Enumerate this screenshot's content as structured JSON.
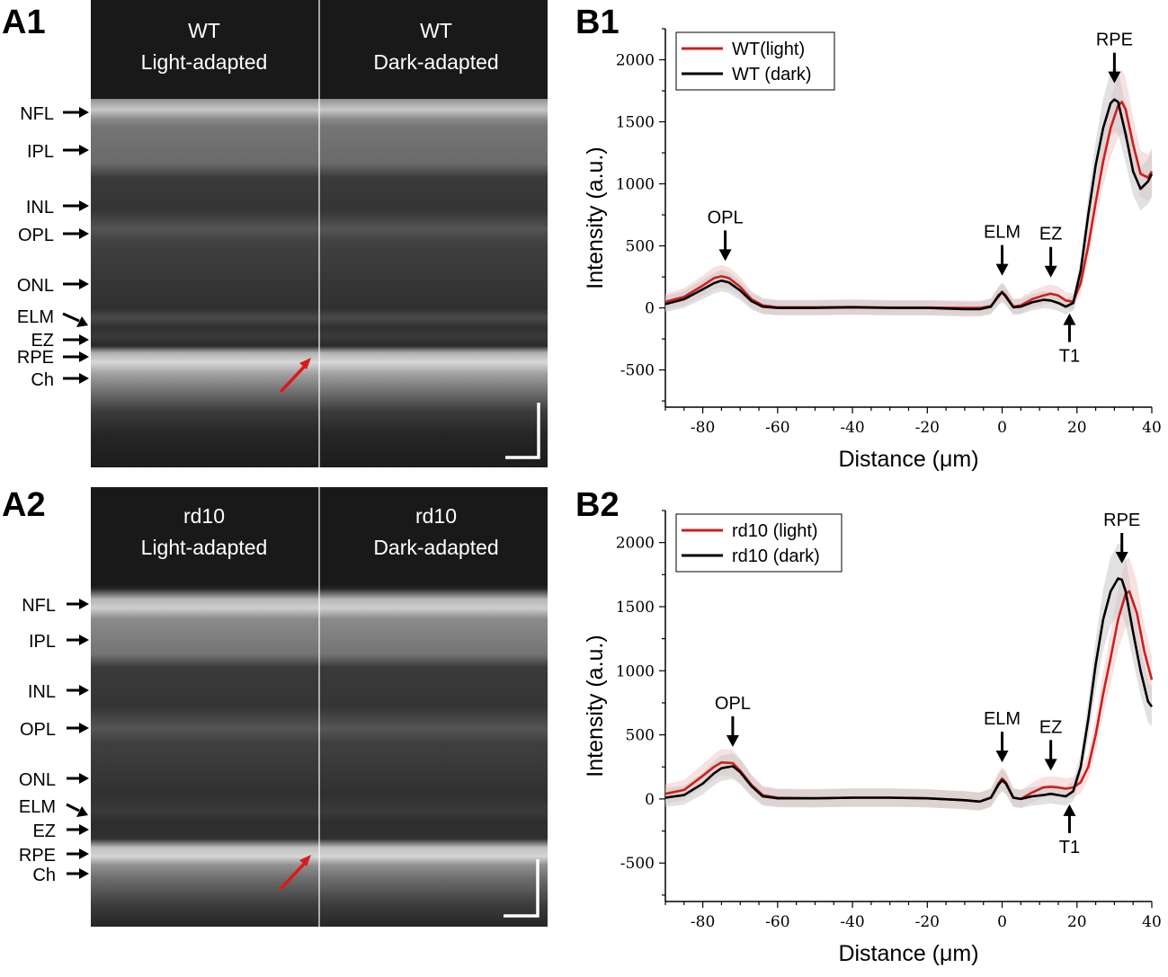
{
  "panels": {
    "a1": "A1",
    "a2": "A2",
    "b1": "B1",
    "b2": "B2"
  },
  "oct_rows": [
    {
      "left_title": [
        "WT",
        "Light-adapted"
      ],
      "right_title": [
        "WT",
        "Dark-adapted"
      ],
      "layer_labels": [
        "NFL",
        "IPL",
        "INL",
        "OPL",
        "ONL",
        "ELM",
        "EZ",
        "RPE",
        "Ch"
      ]
    },
    {
      "left_title": [
        "rd10",
        "Light-adapted"
      ],
      "right_title": [
        "rd10",
        "Dark-adapted"
      ],
      "layer_labels": [
        "NFL",
        "IPL",
        "INL",
        "OPL",
        "ONL",
        "ELM",
        "EZ",
        "RPE",
        "Ch"
      ]
    }
  ],
  "colors": {
    "light_series": "#cc1f1f",
    "dark_series": "#000000",
    "light_band": "#f3c9c9",
    "dark_band": "#c9c9c9",
    "red_arrow": "#e01818",
    "oct_background": "#1c1c1c"
  },
  "chart_data": [
    {
      "type": "line",
      "xlabel": "Distance (μm)",
      "ylabel": "Intensity (a.u.)",
      "xlim": [
        -90,
        40
      ],
      "ylim": [
        -800,
        2250
      ],
      "x_ticks": [
        -80,
        -60,
        -40,
        -20,
        0,
        20,
        40
      ],
      "y_ticks": [
        -500,
        0,
        500,
        1000,
        1500,
        2000
      ],
      "legend_position": "top-left",
      "grid": false,
      "annotations": [
        {
          "text": "OPL",
          "x": -74,
          "direction": "down"
        },
        {
          "text": "ELM",
          "x": 0,
          "direction": "down"
        },
        {
          "text": "EZ",
          "x": 13,
          "direction": "down"
        },
        {
          "text": "RPE",
          "x": 30,
          "direction": "down"
        },
        {
          "text": "T1",
          "x": 18,
          "direction": "up"
        }
      ],
      "series": [
        {
          "name": "WT(light)",
          "color": "#cc1f1f",
          "x": [
            -90,
            -85,
            -80,
            -77,
            -75,
            -73,
            -70,
            -67,
            -64,
            -60,
            -50,
            -40,
            -30,
            -20,
            -10,
            -6,
            -3,
            -1,
            0,
            1,
            3,
            5,
            8,
            11,
            13,
            15,
            17,
            19,
            21,
            23,
            25,
            27,
            29,
            31,
            32,
            33,
            35,
            37,
            39,
            40
          ],
          "y": [
            50,
            90,
            180,
            240,
            255,
            240,
            170,
            70,
            20,
            5,
            5,
            8,
            3,
            3,
            0,
            0,
            15,
            90,
            130,
            100,
            10,
            20,
            70,
            100,
            115,
            100,
            60,
            50,
            200,
            500,
            850,
            1180,
            1450,
            1630,
            1660,
            1600,
            1320,
            1080,
            1050,
            1100
          ],
          "band": 60
        },
        {
          "name": "WT (dark)",
          "color": "#000000",
          "x": [
            -90,
            -85,
            -80,
            -77,
            -75,
            -73,
            -70,
            -67,
            -64,
            -60,
            -50,
            -40,
            -30,
            -20,
            -10,
            -6,
            -3,
            -1,
            0,
            1,
            3,
            5,
            8,
            11,
            13,
            15,
            17,
            19,
            21,
            23,
            25,
            27,
            29,
            30,
            31,
            33,
            35,
            37,
            39,
            40
          ],
          "y": [
            30,
            70,
            150,
            200,
            220,
            205,
            140,
            55,
            10,
            0,
            0,
            5,
            0,
            0,
            -10,
            -10,
            10,
            100,
            125,
            90,
            5,
            10,
            45,
            65,
            60,
            40,
            10,
            40,
            300,
            750,
            1150,
            1450,
            1650,
            1680,
            1660,
            1400,
            1100,
            960,
            1020,
            1080
          ],
          "band": 60
        }
      ]
    },
    {
      "type": "line",
      "xlabel": "Distance (μm)",
      "ylabel": "Intensity (a.u.)",
      "xlim": [
        -90,
        40
      ],
      "ylim": [
        -800,
        2250
      ],
      "x_ticks": [
        -80,
        -60,
        -40,
        -20,
        0,
        20,
        40
      ],
      "y_ticks": [
        -500,
        0,
        500,
        1000,
        1500,
        2000
      ],
      "legend_position": "top-left",
      "grid": false,
      "annotations": [
        {
          "text": "OPL",
          "x": -72,
          "direction": "down"
        },
        {
          "text": "ELM",
          "x": 0,
          "direction": "down"
        },
        {
          "text": "EZ",
          "x": 13,
          "direction": "down"
        },
        {
          "text": "RPE",
          "x": 32,
          "direction": "down"
        },
        {
          "text": "T1",
          "x": 18,
          "direction": "up"
        }
      ],
      "series": [
        {
          "name": "rd10 (light)",
          "color": "#cc1f1f",
          "x": [
            -90,
            -85,
            -80,
            -77,
            -75,
            -72,
            -70,
            -67,
            -64,
            -60,
            -50,
            -40,
            -30,
            -20,
            -10,
            -6,
            -3,
            -1,
            0,
            1,
            3,
            5,
            8,
            11,
            13,
            15,
            17,
            19,
            21,
            23,
            25,
            27,
            29,
            31,
            33,
            34,
            36,
            38,
            40
          ],
          "y": [
            40,
            70,
            180,
            250,
            285,
            280,
            220,
            110,
            30,
            10,
            5,
            10,
            10,
            5,
            -10,
            -20,
            10,
            120,
            160,
            130,
            10,
            0,
            50,
            90,
            95,
            90,
            80,
            90,
            130,
            250,
            500,
            820,
            1100,
            1400,
            1600,
            1620,
            1450,
            1150,
            930
          ],
          "band": 70
        },
        {
          "name": "rd10 (dark)",
          "color": "#000000",
          "x": [
            -90,
            -85,
            -80,
            -77,
            -75,
            -72,
            -70,
            -67,
            -64,
            -60,
            -50,
            -40,
            -30,
            -20,
            -10,
            -6,
            -3,
            -1,
            0,
            1,
            3,
            5,
            8,
            11,
            13,
            15,
            17,
            19,
            21,
            23,
            25,
            27,
            29,
            31,
            32,
            33,
            35,
            37,
            39,
            40
          ],
          "y": [
            10,
            30,
            120,
            200,
            240,
            255,
            210,
            100,
            20,
            5,
            5,
            10,
            10,
            5,
            -10,
            -20,
            10,
            110,
            145,
            120,
            10,
            0,
            20,
            30,
            40,
            30,
            20,
            60,
            250,
            620,
            1050,
            1400,
            1620,
            1720,
            1710,
            1620,
            1300,
            1000,
            760,
            720
          ],
          "band": 70
        }
      ]
    }
  ]
}
